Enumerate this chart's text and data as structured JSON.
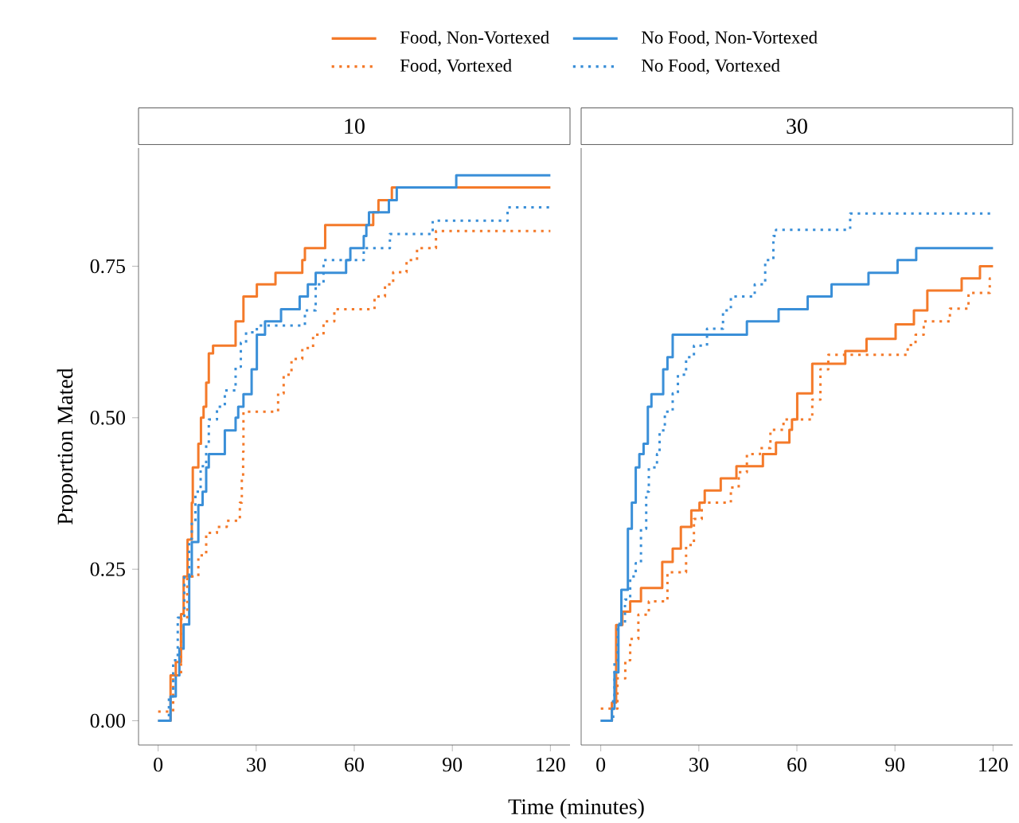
{
  "chart_data": [
    {
      "type": "step",
      "title": "10",
      "xlabel": "Time (minutes)",
      "ylabel": "Proportion Mated",
      "legend": "top",
      "xlim": [
        -6,
        126
      ],
      "ylim": [
        -0.04,
        0.945
      ],
      "xticks": [
        0,
        30,
        60,
        90,
        120
      ],
      "yticks": [
        {
          "value": 0,
          "label": "0.00"
        },
        {
          "value": 0.25,
          "label": "0.25"
        },
        {
          "value": 0.5,
          "label": "0.50"
        },
        {
          "value": 0.75,
          "label": "0.75"
        }
      ],
      "series": [
        {
          "name": "Food, Non-Vortexed",
          "color": "#f47a2a",
          "line_style": "solid",
          "x": [
            0,
            3.8,
            5.4,
            7.0,
            7.8,
            9.0,
            10.3,
            10.6,
            12.3,
            13.1,
            13.9,
            14.7,
            15.5,
            16.8,
            23.7,
            26.1,
            30.2,
            35.9,
            44.1,
            44.9,
            51.1,
            65.8,
            67.4,
            71.5,
            120
          ],
          "values": [
            0,
            0.075,
            0.097,
            0.176,
            0.238,
            0.299,
            0.36,
            0.418,
            0.457,
            0.5,
            0.518,
            0.558,
            0.606,
            0.619,
            0.659,
            0.7,
            0.72,
            0.739,
            0.76,
            0.78,
            0.818,
            0.839,
            0.859,
            0.88,
            0.88
          ]
        },
        {
          "name": "No Food, Non-Vortexed",
          "color": "#3a8fd8",
          "line_style": "solid",
          "x": [
            0,
            3.8,
            5.4,
            6.5,
            7.8,
            9.5,
            10.3,
            12.3,
            13.6,
            14.7,
            15.5,
            20.4,
            23.7,
            24.5,
            26.1,
            28.6,
            30.2,
            32.7,
            37.6,
            43.3,
            45.8,
            48.2,
            57.5,
            58.8,
            62.9,
            63.7,
            64.5,
            70.6,
            73.0,
            91.2,
            120
          ],
          "values": [
            0,
            0.04,
            0.075,
            0.119,
            0.159,
            0.238,
            0.295,
            0.356,
            0.378,
            0.418,
            0.44,
            0.479,
            0.5,
            0.518,
            0.539,
            0.58,
            0.637,
            0.659,
            0.679,
            0.7,
            0.72,
            0.739,
            0.76,
            0.78,
            0.8,
            0.818,
            0.839,
            0.859,
            0.88,
            0.9,
            0.9
          ]
        },
        {
          "name": "Food, Vortexed",
          "color": "#f47a2a",
          "line_style": "dotted",
          "x": [
            0,
            4.6,
            7.0,
            8.9,
            12.3,
            14.7,
            18,
            21,
            25,
            25.6,
            26.0,
            26.1,
            36.7,
            38.4,
            40.8,
            44.1,
            47.4,
            50.6,
            53.9,
            66.2,
            69.4,
            71.9,
            76.0,
            79.2,
            85,
            120
          ],
          "values": [
            0.015,
            0.075,
            0.168,
            0.238,
            0.273,
            0.31,
            0.32,
            0.33,
            0.36,
            0.4,
            0.444,
            0.51,
            0.54,
            0.571,
            0.597,
            0.615,
            0.637,
            0.659,
            0.679,
            0.7,
            0.72,
            0.74,
            0.76,
            0.78,
            0.808,
            0.808
          ]
        },
        {
          "name": "No Food, Vortexed",
          "color": "#3a8fd8",
          "line_style": "dotted",
          "x": [
            0,
            3.3,
            4.6,
            6.0,
            8.0,
            9.5,
            10.3,
            11.4,
            13,
            14.7,
            15.5,
            18,
            20.4,
            23.7,
            25.3,
            26.9,
            30.2,
            44.9,
            48.2,
            50.6,
            62.9,
            70.9,
            84,
            106.9,
            120
          ],
          "values": [
            0,
            0.04,
            0.1,
            0.17,
            0.24,
            0.3,
            0.327,
            0.378,
            0.42,
            0.457,
            0.497,
            0.518,
            0.545,
            0.584,
            0.624,
            0.641,
            0.652,
            0.677,
            0.72,
            0.76,
            0.78,
            0.803,
            0.825,
            0.847,
            0.847
          ]
        }
      ]
    },
    {
      "type": "step",
      "title": "30",
      "tick_labels": "x",
      "xlim": [
        -6,
        126
      ],
      "ylim": [
        -0.04,
        0.945
      ],
      "xticks": [
        0,
        30,
        60,
        90,
        120
      ],
      "series": [
        {
          "color": "#f47a2a",
          "line_style": "solid",
          "x": [
            0,
            3.4,
            4.7,
            6.6,
            9.0,
            12.3,
            18.8,
            22.0,
            24.5,
            27.7,
            30.2,
            31.8,
            36.7,
            41.5,
            49.6,
            53.6,
            57.7,
            58.5,
            60.1,
            64.7,
            74.8,
            81.3,
            90.2,
            95.8,
            99.9,
            110.4,
            116,
            120
          ],
          "values": [
            0,
            0.03,
            0.158,
            0.18,
            0.197,
            0.219,
            0.262,
            0.284,
            0.32,
            0.347,
            0.36,
            0.38,
            0.4,
            0.42,
            0.44,
            0.459,
            0.48,
            0.497,
            0.54,
            0.589,
            0.61,
            0.63,
            0.654,
            0.677,
            0.71,
            0.73,
            0.75,
            0.75
          ]
        },
        {
          "color": "#3a8fd8",
          "line_style": "solid",
          "x": [
            0,
            3.4,
            4.2,
            5.4,
            6.3,
            8.3,
            9.5,
            10.7,
            11.8,
            13.1,
            14.4,
            15.5,
            19.1,
            20.4,
            22.0,
            44.7,
            54.4,
            63.3,
            70.6,
            81.9,
            90.8,
            96.5,
            120
          ],
          "values": [
            0,
            0.02,
            0.08,
            0.158,
            0.216,
            0.317,
            0.36,
            0.418,
            0.44,
            0.457,
            0.518,
            0.539,
            0.58,
            0.6,
            0.637,
            0.659,
            0.679,
            0.7,
            0.72,
            0.739,
            0.76,
            0.78,
            0.78
          ]
        },
        {
          "color": "#f47a2a",
          "line_style": "dotted",
          "x": [
            0,
            5.1,
            7.5,
            9.0,
            11.5,
            14.7,
            20.4,
            26.1,
            28.5,
            30.9,
            39.8,
            42.2,
            44.7,
            48.7,
            51.9,
            55.9,
            64.7,
            67.2,
            69.6,
            93.9,
            96.3,
            98.8,
            106.8,
            112.5,
            119,
            120
          ],
          "values": [
            0.02,
            0.07,
            0.1,
            0.135,
            0.175,
            0.197,
            0.245,
            0.29,
            0.333,
            0.36,
            0.385,
            0.41,
            0.44,
            0.45,
            0.48,
            0.497,
            0.53,
            0.58,
            0.604,
            0.62,
            0.637,
            0.659,
            0.68,
            0.706,
            0.73,
            0.73
          ]
        },
        {
          "color": "#3a8fd8",
          "line_style": "dotted",
          "x": [
            0,
            3.8,
            4.2,
            5.2,
            7.4,
            9.0,
            10.7,
            12.3,
            13.9,
            14.7,
            17.2,
            18.0,
            19.6,
            22.0,
            23.6,
            26.1,
            28.5,
            32.5,
            37.4,
            39.8,
            47.1,
            50.3,
            52.8,
            53.6,
            76.3,
            120
          ],
          "values": [
            0,
            0.04,
            0.1,
            0.16,
            0.2,
            0.238,
            0.26,
            0.317,
            0.378,
            0.418,
            0.44,
            0.479,
            0.51,
            0.54,
            0.571,
            0.6,
            0.619,
            0.647,
            0.677,
            0.7,
            0.72,
            0.76,
            0.8,
            0.81,
            0.837,
            0.837
          ]
        }
      ]
    }
  ]
}
